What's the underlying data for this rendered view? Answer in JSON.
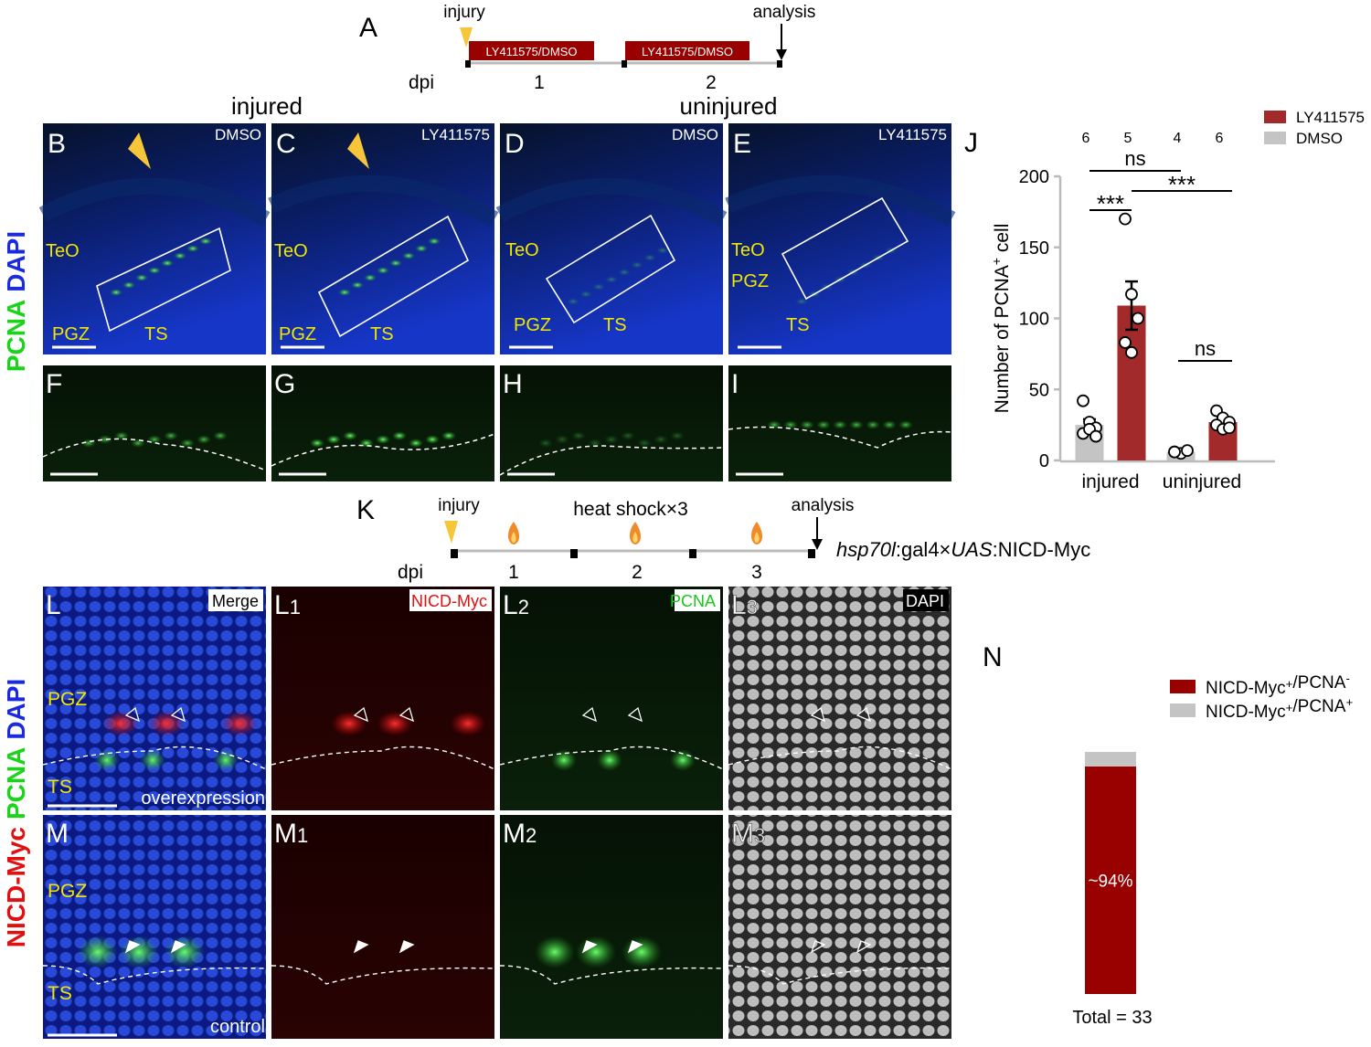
{
  "timeline_a": {
    "panel": "A",
    "start": "injury",
    "end": "analysis",
    "bars": [
      "LY411575/DMSO",
      "LY411575/DMSO"
    ],
    "unit": "dpi",
    "days": [
      "1",
      "2"
    ]
  },
  "columns": [
    "injured",
    "uninjured"
  ],
  "stain_top": [
    "PCNA",
    "DAPI"
  ],
  "overview": [
    {
      "panel": "B",
      "drug": "DMSO",
      "regions": [
        "TeO",
        "PGZ",
        "TS"
      ]
    },
    {
      "panel": "C",
      "drug": "LY411575",
      "regions": [
        "TeO",
        "PGZ",
        "TS"
      ]
    },
    {
      "panel": "D",
      "drug": "DMSO",
      "regions": [
        "TeO",
        "PGZ",
        "TS"
      ]
    },
    {
      "panel": "E",
      "drug": "LY411575",
      "regions": [
        "TeO",
        "PGZ",
        "TS"
      ]
    }
  ],
  "zoom": [
    "F",
    "G",
    "H",
    "I"
  ],
  "timeline_k": {
    "panel": "K",
    "start": "injury",
    "event": "heat shock×3",
    "end": "analysis",
    "unit": "dpi",
    "days": [
      "1",
      "2",
      "3"
    ],
    "genotype": [
      "hsp70l",
      ":gal4×",
      "UAS",
      ":NICD-Myc"
    ]
  },
  "stain_bottom": [
    "NICD-Myc",
    "PCNA",
    "DAPI"
  ],
  "rows": [
    {
      "panels": [
        {
          "label": "L",
          "channel": "Merge"
        },
        {
          "label": "L",
          "sub": "1",
          "channel": "NICD-Myc"
        },
        {
          "label": "L",
          "sub": "2",
          "channel": "PCNA"
        },
        {
          "label": "L",
          "sub": "3",
          "channel": "DAPI"
        }
      ],
      "regions": [
        "PGZ",
        "TS"
      ],
      "condition": "overexpression"
    },
    {
      "panels": [
        {
          "label": "M"
        },
        {
          "label": "M",
          "sub": "1"
        },
        {
          "label": "M",
          "sub": "2"
        },
        {
          "label": "M",
          "sub": "3"
        }
      ],
      "regions": [
        "PGZ",
        "TS"
      ],
      "condition": "control"
    }
  ],
  "chart_data": [
    {
      "type": "bar",
      "panel": "J",
      "ylabel": [
        "Number of PCNA",
        "+",
        " cell"
      ],
      "categories": [
        "injured",
        "uninjured"
      ],
      "series": [
        {
          "name": "LY411575",
          "color": "#a32a2a",
          "values": [
            109,
            27
          ],
          "errors": [
            17,
            3
          ],
          "n": [
            5,
            6
          ],
          "points": [
            [
              170,
              117,
              100,
              83,
              76
            ],
            [
              35,
              30,
              27,
              25,
              22,
              23
            ]
          ]
        },
        {
          "name": "DMSO",
          "color": "#c4c4c4",
          "values": [
            25,
            6
          ],
          "errors": [
            4,
            1
          ],
          "n": [
            6,
            4
          ],
          "points": [
            [
              42,
              27,
              23,
              19,
              22,
              17
            ],
            [
              6,
              5,
              7,
              6
            ]
          ]
        }
      ],
      "annotations": [
        "ns",
        "***",
        "***",
        "ns"
      ],
      "ylim": [
        0,
        200
      ],
      "yticks": [
        0,
        50,
        100,
        150,
        200
      ]
    },
    {
      "type": "stacked-bar",
      "panel": "N",
      "series": [
        {
          "name": "NICD-Myc+/PCNA-",
          "color": "#990000",
          "values": [
            94
          ],
          "value_labels": [
            "~94%"
          ]
        },
        {
          "name": "NICD-Myc+/PCNA+",
          "color": "#c4c4c4",
          "values": [
            6
          ]
        }
      ],
      "total_label": "Total = 33"
    }
  ]
}
